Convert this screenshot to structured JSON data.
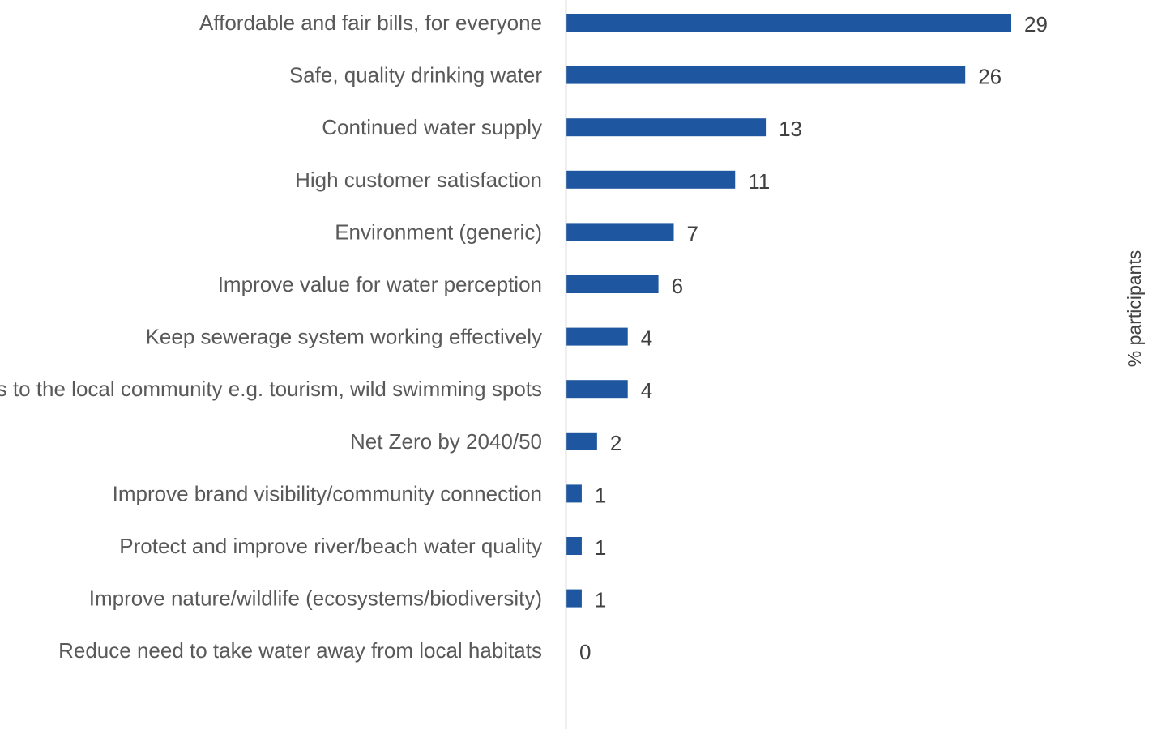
{
  "chart_data": {
    "type": "bar",
    "orientation": "horizontal",
    "categories": [
      "Affordable and fair bills, for everyone",
      "Safe, quality drinking water",
      "Continued water supply",
      "High customer satisfaction",
      "Environment (generic)",
      "Improve value for water perception",
      "Keep sewerage system working effectively",
      "Benefits to the local community e.g. tourism, wild swimming spots",
      "Net Zero by 2040/50",
      "Improve brand visibility/community connection",
      "Protect and improve river/beach water quality",
      "Improve nature/wildlife (ecosystems/biodiversity)",
      "Reduce need to take water away from local habitats"
    ],
    "values": [
      29,
      26,
      13,
      11,
      7,
      6,
      4,
      4,
      2,
      1,
      1,
      1,
      0
    ],
    "value_labels": [
      "29",
      "26",
      "13",
      "11",
      "7",
      "6",
      "4",
      "4",
      "2",
      "1",
      "1",
      "1",
      "0"
    ],
    "xlim": [
      0,
      29
    ],
    "ylabel": "% participants",
    "bar_color": "#1f56a0",
    "axis_color": "#bfbfbf",
    "grid": false,
    "legend": "none"
  }
}
